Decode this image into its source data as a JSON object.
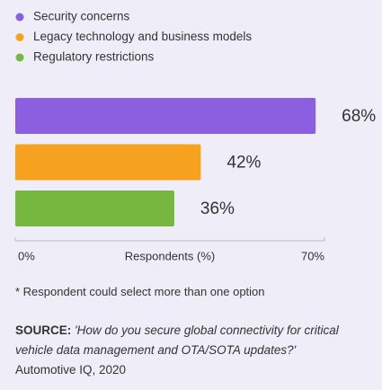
{
  "chart_data": {
    "type": "bar",
    "orientation": "horizontal",
    "series": [
      {
        "name": "Security concerns",
        "color": "#8c5fe0",
        "values": [
          68
        ],
        "value_labels": [
          "68%"
        ]
      },
      {
        "name": "Legacy technology and business models",
        "color": "#f7a21e",
        "values": [
          42
        ],
        "value_labels": [
          "42%"
        ]
      },
      {
        "name": "Regulatory restrictions",
        "color": "#76b83f",
        "values": [
          36
        ],
        "value_labels": [
          "36%"
        ]
      }
    ],
    "xlim": [
      0,
      70
    ],
    "xticks": [
      {
        "value": 0,
        "label": "0%"
      },
      {
        "value": 70,
        "label": "70%"
      }
    ],
    "x_label": "Respondents (%)",
    "footnote": "* Respondent could select more than one option",
    "source_label": "SOURCE:",
    "source_text": "'How do you secure global connectivity for critical vehicle data management and OTA/SOTA updates?'",
    "source_credit": "Automotive IQ, 2020"
  }
}
